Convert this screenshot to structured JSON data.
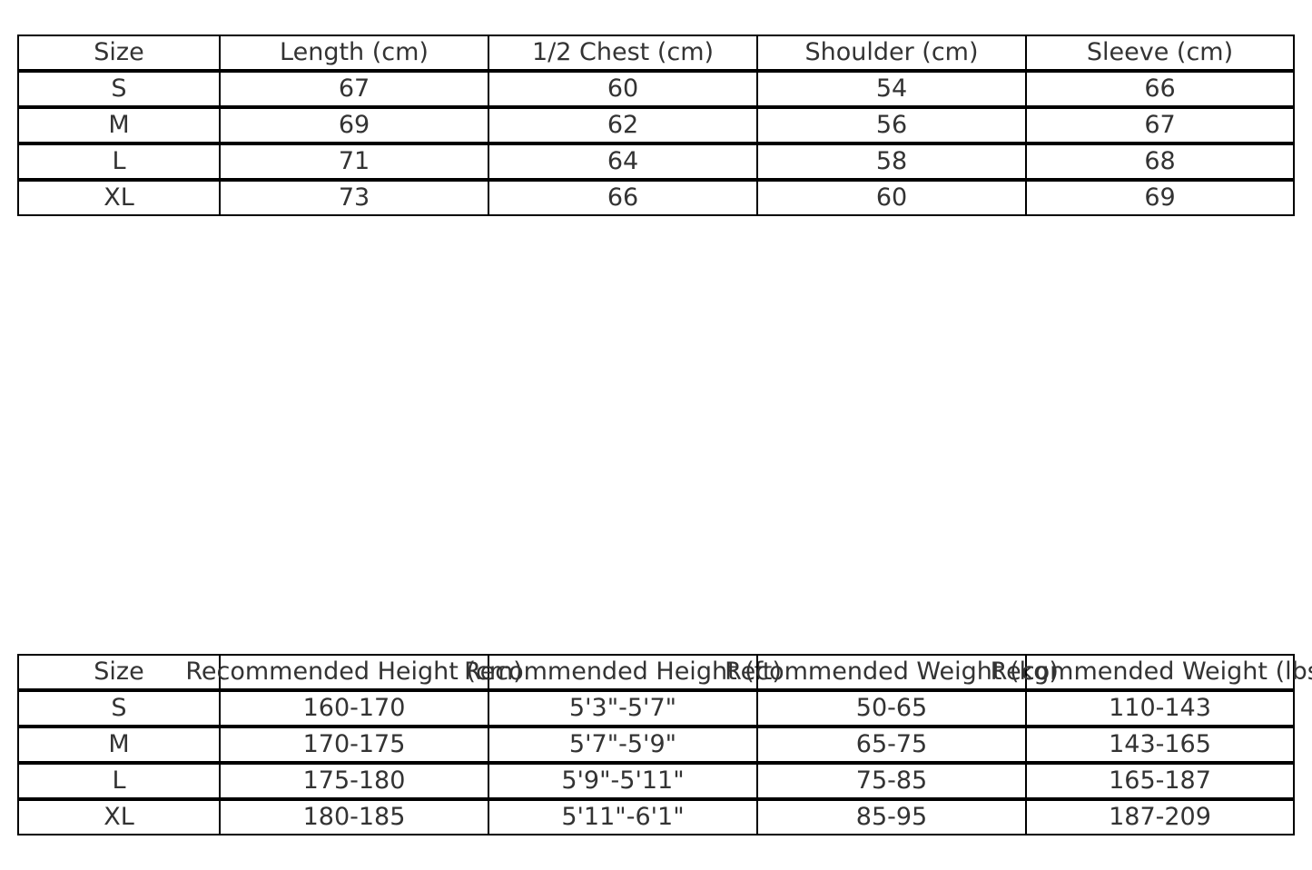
{
  "measurements_table": {
    "headers": [
      "Size",
      "Length (cm)",
      "1/2 Chest (cm)",
      "Shoulder (cm)",
      "Sleeve (cm)"
    ],
    "rows": [
      [
        "S",
        "67",
        "60",
        "54",
        "66"
      ],
      [
        "M",
        "69",
        "62",
        "56",
        "67"
      ],
      [
        "L",
        "71",
        "64",
        "58",
        "68"
      ],
      [
        "XL",
        "73",
        "66",
        "60",
        "69"
      ]
    ]
  },
  "recommendation_table": {
    "headers": [
      "Size",
      "Recommended Height (cm)",
      "Recommended Height (ft)",
      "Recommended Weight (kg)",
      "Recommended Weight (lbs)"
    ],
    "rows": [
      [
        "S",
        "160-170",
        "5'3\"-5'7\"",
        "50-65",
        "110-143"
      ],
      [
        "M",
        "170-175",
        "5'7\"-5'9\"",
        "65-75",
        "143-165"
      ],
      [
        "L",
        "175-180",
        "5'9\"-5'11\"",
        "75-85",
        "165-187"
      ],
      [
        "XL",
        "180-185",
        "5'11\"-6'1\"",
        "85-95",
        "187-209"
      ]
    ]
  }
}
